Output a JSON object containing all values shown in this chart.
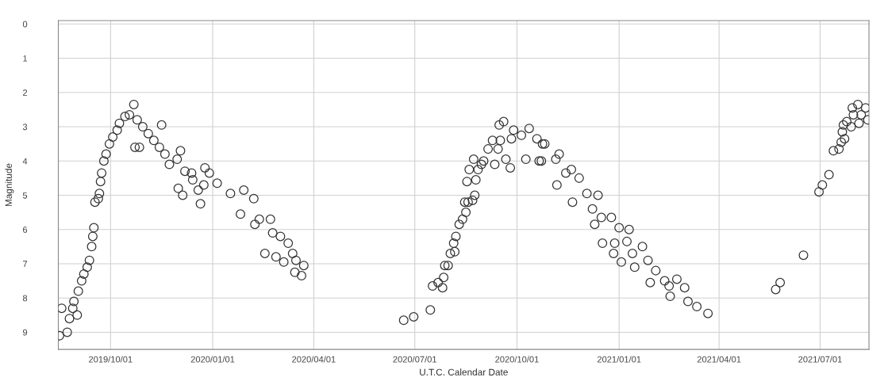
{
  "chart_data": {
    "type": "scatter",
    "xlabel": "U.T.C. Calendar Date",
    "ylabel": "Magnitude",
    "marker": "circle",
    "color": "#333333",
    "grid": true,
    "legend": false,
    "x": [
      "2019-08-16",
      "2019-08-18",
      "2019-08-23",
      "2019-08-25",
      "2019-08-28",
      "2019-08-29",
      "2019-09-01",
      "2019-09-02",
      "2019-09-05",
      "2019-09-07",
      "2019-09-10",
      "2019-09-12",
      "2019-09-14",
      "2019-09-15",
      "2019-09-16",
      "2019-09-17",
      "2019-09-20",
      "2019-09-21",
      "2019-09-22",
      "2019-09-23",
      "2019-09-25",
      "2019-09-27",
      "2019-09-30",
      "2019-10-03",
      "2019-10-07",
      "2019-10-09",
      "2019-10-14",
      "2019-10-18",
      "2019-10-22",
      "2019-10-23",
      "2019-10-27",
      "2019-10-25",
      "2019-10-30",
      "2019-11-04",
      "2019-11-09",
      "2019-11-16",
      "2019-11-14",
      "2019-11-19",
      "2019-11-23",
      "2019-11-30",
      "2019-12-01",
      "2019-12-03",
      "2019-12-05",
      "2019-12-07",
      "2019-12-14",
      "2019-12-21",
      "2019-12-19",
      "2019-12-24",
      "2019-12-13",
      "2019-12-25",
      "2019-12-29",
      "2020-01-05",
      "2020-01-17",
      "2020-01-29",
      "2020-02-07",
      "2020-01-26",
      "2020-02-12",
      "2020-02-22",
      "2020-02-08",
      "2020-02-24",
      "2020-03-02",
      "2020-03-09",
      "2020-02-17",
      "2020-02-27",
      "2020-03-05",
      "2020-03-13",
      "2020-03-16",
      "2020-03-23",
      "2020-03-15",
      "2020-03-21",
      "2020-06-21",
      "2020-06-30",
      "2020-07-15",
      "2020-07-17",
      "2020-07-22",
      "2020-07-26",
      "2020-07-27",
      "2020-07-28",
      "2020-07-31",
      "2020-08-02",
      "2020-08-06",
      "2020-08-05",
      "2020-08-07",
      "2020-08-10",
      "2020-08-13",
      "2020-08-16",
      "2020-08-15",
      "2020-08-18",
      "2020-08-22",
      "2020-08-24",
      "2020-08-17",
      "2020-08-19",
      "2020-08-25",
      "2020-08-27",
      "2020-08-23",
      "2020-08-30",
      "2020-09-01",
      "2020-09-05",
      "2020-09-09",
      "2020-09-11",
      "2020-09-14",
      "2020-09-16",
      "2020-09-15",
      "2020-09-19",
      "2020-09-25",
      "2020-09-21",
      "2020-09-26",
      "2020-09-28",
      "2020-10-05",
      "2020-10-12",
      "2020-10-09",
      "2020-10-19",
      "2020-10-21",
      "2020-10-26",
      "2020-10-24",
      "2020-10-23",
      "2020-11-05",
      "2020-11-08",
      "2020-11-06",
      "2020-11-14",
      "2020-11-19",
      "2020-11-26",
      "2020-11-20",
      "2020-12-03",
      "2020-12-13",
      "2020-12-08",
      "2020-12-16",
      "2020-12-25",
      "2020-12-10",
      "2021-01-01",
      "2020-12-17",
      "2021-01-10",
      "2020-12-28",
      "2020-12-27",
      "2021-01-08",
      "2021-01-03",
      "2021-01-13",
      "2021-01-22",
      "2021-01-15",
      "2021-01-27",
      "2021-02-03",
      "2021-01-29",
      "2021-02-11",
      "2021-02-22",
      "2021-02-15",
      "2021-02-16",
      "2021-03-01",
      "2021-03-04",
      "2021-03-12",
      "2021-03-22",
      "2021-05-22",
      "2021-05-26",
      "2021-06-16",
      "2021-06-30",
      "2021-07-03",
      "2021-07-09",
      "2021-07-13",
      "2021-07-18",
      "2021-07-20",
      "2021-07-23",
      "2021-07-21",
      "2021-07-22",
      "2021-07-25",
      "2021-07-29",
      "2021-07-30",
      "2021-07-31",
      "2021-08-04",
      "2021-08-05",
      "2021-08-07",
      "2021-08-11",
      "2021-08-13"
    ],
    "values": [
      9.1,
      8.3,
      9.0,
      8.6,
      8.3,
      8.1,
      8.5,
      7.8,
      7.5,
      7.3,
      7.1,
      6.9,
      6.5,
      6.2,
      5.95,
      5.2,
      5.1,
      4.95,
      4.6,
      4.35,
      4.0,
      3.8,
      3.5,
      3.3,
      3.1,
      2.9,
      2.7,
      2.65,
      2.35,
      3.6,
      3.6,
      2.8,
      3.0,
      3.2,
      3.4,
      2.95,
      3.6,
      3.8,
      4.1,
      3.95,
      4.8,
      3.7,
      5.0,
      4.3,
      4.55,
      5.25,
      4.85,
      4.7,
      4.35,
      4.2,
      4.35,
      4.65,
      4.95,
      4.85,
      5.1,
      5.55,
      5.7,
      5.7,
      5.85,
      6.1,
      6.2,
      6.4,
      6.7,
      6.8,
      6.95,
      6.7,
      6.9,
      7.05,
      7.25,
      7.35,
      8.65,
      8.55,
      8.35,
      7.65,
      7.55,
      7.7,
      7.4,
      7.05,
      7.05,
      6.7,
      6.65,
      6.4,
      6.2,
      5.85,
      5.7,
      5.5,
      5.2,
      5.2,
      5.15,
      5.0,
      4.6,
      4.25,
      4.55,
      4.25,
      3.95,
      4.1,
      4.0,
      3.65,
      3.4,
      4.1,
      3.65,
      3.4,
      2.95,
      2.85,
      4.2,
      3.95,
      3.35,
      3.1,
      3.25,
      3.05,
      3.95,
      3.35,
      4.0,
      3.5,
      3.5,
      4.0,
      3.95,
      3.8,
      4.7,
      4.35,
      4.25,
      4.5,
      5.2,
      4.95,
      5.0,
      5.4,
      5.65,
      5.65,
      5.85,
      5.95,
      6.4,
      6.0,
      6.4,
      6.7,
      6.35,
      6.95,
      6.7,
      6.5,
      7.1,
      6.9,
      7.2,
      7.55,
      7.5,
      7.45,
      7.65,
      7.95,
      7.7,
      8.1,
      8.25,
      8.45,
      7.75,
      7.55,
      6.75,
      4.9,
      4.7,
      4.4,
      3.7,
      3.65,
      3.45,
      3.35,
      3.15,
      2.95,
      2.85,
      3.0,
      2.45,
      2.65,
      2.35,
      2.9,
      2.65,
      2.45,
      2.8
    ],
    "xlim": [
      "2019-08-15",
      "2021-08-14"
    ],
    "xticks": [
      {
        "value": "2019-10-01",
        "label": "2019/10/01"
      },
      {
        "value": "2020-01-01",
        "label": "2020/01/01"
      },
      {
        "value": "2020-04-01",
        "label": "2020/04/01"
      },
      {
        "value": "2020-07-01",
        "label": "2020/07/01"
      },
      {
        "value": "2020-10-01",
        "label": "2020/10/01"
      },
      {
        "value": "2021-01-01",
        "label": "2021/01/01"
      },
      {
        "value": "2021-04-01",
        "label": "2021/04/01"
      },
      {
        "value": "2021-07-01",
        "label": "2021/07/01"
      }
    ],
    "ylim": [
      9.5,
      -0.1
    ],
    "yticks": [
      0,
      1,
      2,
      3,
      4,
      5,
      6,
      7,
      8,
      9
    ]
  }
}
